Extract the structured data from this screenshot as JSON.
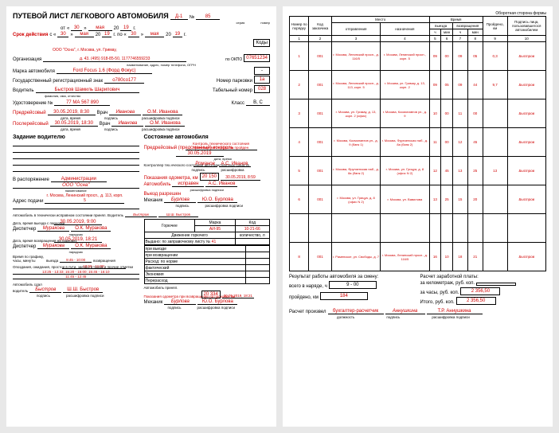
{
  "left": {
    "title": "ПУТЕВОЙ ЛИСТ ЛЕГКОВОГО АВТОМОБИЛЯ",
    "series_lbl": "Д-1",
    "series_sub": "серия",
    "number_lbl": "№",
    "number": "85",
    "number_sub": "номер",
    "from_lbl": "от",
    "from_day": "30",
    "from_month": "мая",
    "from_year_prefix": "20",
    "from_year": "19",
    "from_year_suffix": "г.",
    "validity_lbl": "Срок действия",
    "validity_from_lbl": "с «",
    "v_from_day": "30",
    "v_from_close": "»",
    "v_from_month": "мая",
    "v_year_prefix": "20",
    "v_from_year": "19",
    "validity_to_lbl": "г. по «",
    "v_to_day": "30",
    "v_to_close": "»",
    "v_to_month": "мая",
    "v_to_year": "19",
    "v_to_suffix": "г.",
    "codes_lbl": "Коды",
    "org_line": "ООО \"Осна\", г. Москва, ул. Гримау,",
    "org_lbl": "Организация",
    "org_details": "д. 43, (495) 918-85-50, 1177746559233",
    "org_sub": "наименование, адрес, номер телефона, ОГРН",
    "okpo_lbl": "по ОКПО",
    "okpo": "07651234",
    "car_brand_lbl": "Марка автомобиля",
    "car_brand": "Ford Focus 1.6 (Форд Фокус)",
    "car_brand_box": "-",
    "reg_lbl": "Государственный регистрационный знак",
    "reg": "о780со177",
    "parking_lbl": "Номер парковки",
    "parking": "1а",
    "driver_lbl": "Водитель",
    "driver": "Быстров Шамиль Шарипович",
    "driver_sub": "фамилия, имя, отчество",
    "tabel_lbl": "Табельный номер",
    "tabel": "028",
    "license_lbl": "Удостоверение №",
    "license": "77 МА 567 890",
    "class_lbl": "Класс",
    "class": "В, С",
    "pre_lbl": "Предрейсовый",
    "pre_date": "30.05.2019, 8:30",
    "pre_date_sub": "дата, время",
    "pre_sign_lbl": "Врач",
    "pre_sign": "Иванова",
    "pre_sign_sub": "подпись",
    "pre_name": "О.М. Иванова",
    "pre_name_sub": "расшифровка подписи",
    "post_lbl": "Послерейсовый",
    "post_date": "30.05.2019, 18:30",
    "post_sign_lbl": "Врач",
    "post_sign": "Иванова",
    "post_name": "О.М. Иванова",
    "task_title": "Задание водителю",
    "state_title": "Состояние автомобиля",
    "pre_control_lbl": "Предрейсовый (предсменный) контроль",
    "pre_control_text": "Контроль технического состояния транспортного средства пройден",
    "pre_control_date": "30.05.2019",
    "pre_control_date_sub": "дата, время",
    "tech_controller_lbl": "Контроллер тех.нческого состояния автотранспортных средств",
    "tech_sign": "Романов",
    "tech_sign_sub": "подпись",
    "tech_name": "А.С. Иванов",
    "tech_name_sub": "расшифровка",
    "odometer_out_lbl": "Показания одометра, км",
    "odometer_out": "20 150",
    "odometer_out_date": "30.05.2019, 8:59",
    "dispose_lbl": "В распоряжение",
    "dispose": "Администрации",
    "dispose_org": "ООО \"Осна\"",
    "dispose_sub": "наименование",
    "addr_lbl": "Адрес подачи",
    "addr": "г. Москва, Ленинский просп., д. 113, корп. 5",
    "allowed_lbl": "Автомобиль",
    "allowed": "исправен",
    "allowed_name": "А.С. Иванов",
    "out_allowed_lbl": "Выезд разрешен",
    "mechanic_lbl": "Механик",
    "mechanic_sign": "Бурлова",
    "mechanic_name": "Ю.О. Бурлова",
    "tech_ok_lbl": "Автомобиль в технически исправном состоянии принял. Водитель",
    "tech_ok_sign": "Быстров",
    "tech_ok_name": "Ш.Ш. Быстров",
    "depart_lbl": "Дата, время выезда с парковки",
    "depart": "30.05.2019, 9:00",
    "fuel_title": "Горючее",
    "fuel_brand_lbl": "Марка",
    "fuel_brand": "АИ-95",
    "fuel_code_lbl": "Код",
    "fuel_code": "10-21-66",
    "fuel_move_lbl": "Движение горючего",
    "fuel_qty_lbl": "количество, л",
    "disp_lbl": "Диспетчер",
    "disp_sign": "Муракова",
    "disp_name": "О.К. Муракова",
    "disp_sub": "нарядчик",
    "return_lbl": "Дата, время возвращения на парковку",
    "return": "30.05.2019, 18:21",
    "disp2_sign": "Муракова",
    "disp2_name": "О.К. Муракова",
    "given_lbl": "Выдано: по заправочному листу №",
    "given_no": "41",
    "idle_lbl": "Опоздания, ожидания, простои в пути, заезды в гараж и прочие отметки",
    "idle_time1": "10:50 - 11:00;",
    "idle_time2": "13:25 - 13:33; 15:20 - 15:00; 15:45 - 16:10",
    "idle_time3": "11:45 - 12:45",
    "returned_lbl": "Автомобиль сдал",
    "returned_driver_lbl": "водитель",
    "returned_sign": "Быстров",
    "returned_name": "Ш.Ш. Быстров",
    "accepted_lbl": "Автомобиль принял.",
    "odometer_in_lbl": "Показания одометра при возвращении на парковку, км",
    "odometer_in": "20 334",
    "odometer_in_date": "30.05.2019, 18:21",
    "mech_in_lbl": "Механик",
    "mech_in_sign": "Бурлова",
    "mech_in_name": "Ю.О. Бурлова",
    "fuel_rows": [
      {
        "lbl": "при выезде",
        "v": ""
      },
      {
        "lbl": "при возвращении",
        "v": ""
      },
      {
        "lbl": "Расход: по норме",
        "v": ""
      },
      {
        "lbl": "фактический",
        "v": ""
      },
      {
        "lbl": "Экономия",
        "v": ""
      },
      {
        "lbl": "Перерасход",
        "v": ""
      }
    ],
    "schedule_lbl": "Время по графику, часы, минуты",
    "schedule_out_lbl": "выезда",
    "schedule_out": "9:45 - 10:00",
    "schedule_in_lbl": "возвращения"
  },
  "right": {
    "back_title": "Оборотная сторона формы",
    "headers": {
      "order_no": "Номер по порядку",
      "client_code": "Код заказчика",
      "place": "Место",
      "departure": "отправления",
      "destination": "назначения",
      "time": "Время",
      "out": "выезда",
      "in": "возвращения",
      "h": "ч",
      "m": "мин",
      "km": "Пройдено, км",
      "sign": "Подпись лица, пользовавшегося автомобилем"
    },
    "col_nums": [
      "1",
      "2",
      "3",
      "4",
      "5",
      "6",
      "7",
      "8",
      "9",
      "10"
    ],
    "rows": [
      {
        "n": "1",
        "code": "001",
        "from": "г. Москва, Ленинский просп., д. 116/5",
        "to": "г. Москва, Ленинский просп., корп. 5",
        "oh": "09",
        "om": "00",
        "ih": "09",
        "im": "05",
        "km": "0,3",
        "sig": "Быстров"
      },
      {
        "n": "2",
        "code": "001",
        "from": "г. Москва, Ленинский просп., д. 113, корп. 5",
        "to": "г. Москва, ул. Гримау, д. 13, корп. 2",
        "oh": "09",
        "om": "05",
        "ih": "09",
        "im": "44",
        "km": "9,7",
        "sig": "Быстров"
      },
      {
        "n": "3",
        "code": "001",
        "from": "г. Москва, ул. Гримау, д. 13, корп. 2 (офис)",
        "to": "г. Москва, Космонавтов ул., д. 9",
        "oh": "10",
        "om": "00",
        "ih": "11",
        "im": "00",
        "km": "",
        "sig": "Быстров"
      },
      {
        "n": "4",
        "code": "001",
        "from": "г. Москва, Космонавтов ул., д. 9 (банк 1)",
        "to": "г. Москва, Фрунзенская наб., д. 8а (банк 2)",
        "oh": "11",
        "om": "00",
        "ih": "12",
        "im": "45",
        "km": "",
        "sig": "Быстров"
      },
      {
        "n": "5",
        "code": "001",
        "from": "г. Москва, Фрунзенская наб., д. 8а (банк 2)",
        "to": "г. Москва, ул. Грицуа, д. 8 (офис N 2)",
        "oh": "12",
        "om": "45",
        "ih": "13",
        "im": "25",
        "km": "13",
        "sig": "Быстров"
      },
      {
        "n": "6",
        "code": "001",
        "from": "г. Москва, ул. Грицуа, д. 8 (офис N 2)",
        "to": "г. Москва, ул. Вавилова",
        "oh": "13",
        "om": "25",
        "ih": "15",
        "im": "20",
        "km": "",
        "sig": "Быстров"
      },
      {
        "n": "",
        "code": "",
        "from": "",
        "to": "",
        "oh": "",
        "om": "",
        "ih": "",
        "im": "",
        "km": "",
        "sig": ""
      },
      {
        "n": "8",
        "code": "001",
        "from": "г. Раменское, ул. Свободы, д. 7",
        "to": "г. Москва, Ленинский просп., д. 116/5",
        "oh": "16",
        "om": "10",
        "ih": "18",
        "im": "21",
        "km": "",
        "sig": "Быстров"
      }
    ],
    "result_title": "Результат работы автомобиля за смену:",
    "salary_title": "Расчет заработной платы:",
    "in_work_lbl": "всего в наряде, ч",
    "in_work": "9 - 00",
    "per_km_lbl": "за километраж, руб. коп.",
    "per_km": "",
    "km_lbl": "пройдено, км",
    "km": "184",
    "per_hour_lbl": "за часы, руб. коп.",
    "per_hour": "2 356,50",
    "total_lbl": "Итого, руб. коп.",
    "total": "2 356,50",
    "calc_lbl": "Расчет произвел",
    "calc_pos": "бухгалтер-расчетчик",
    "calc_pos_sub": "должность",
    "calc_sign": "Аннушкина",
    "calc_sign_sub": "подпись",
    "calc_name": "Т.Р. Аннушкина",
    "calc_name_sub": "расшифровка подписи"
  }
}
